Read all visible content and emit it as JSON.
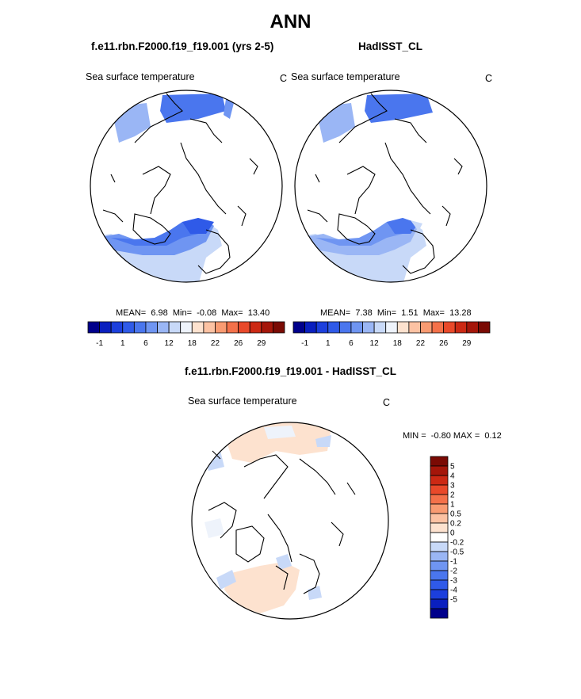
{
  "title": "ANN",
  "panels": [
    {
      "header": "f.e11.rbn.F2000.f19_f19.001 (yrs 2-5)",
      "variable": "Sea surface temperature",
      "units": "C",
      "stats": {
        "mean_label": "MEAN=",
        "mean": "6.98",
        "min_label": "Min=",
        "min": "-0.08",
        "max_label": "Max=",
        "max": "13.40"
      }
    },
    {
      "header": "HadISST_CL",
      "variable": "Sea surface temperature",
      "units": "C",
      "stats": {
        "mean_label": "MEAN=",
        "mean": "7.38",
        "min_label": "Min=",
        "min": "1.51",
        "max_label": "Max=",
        "max": "13.28"
      }
    }
  ],
  "diff_panel": {
    "header": "f.e11.rbn.F2000.f19_f19.001 - HadISST_CL",
    "variable": "Sea surface temperature",
    "units": "C",
    "stats": {
      "min_label": "MIN =",
      "min": "-0.80",
      "max_label": "MAX =",
      "max": "0.12"
    }
  },
  "colorbar_abs": {
    "colors": [
      "#00008b",
      "#0a1fbf",
      "#1c3fdd",
      "#2f5ae8",
      "#4a76ee",
      "#6f95f2",
      "#9ab6f5",
      "#c8d9f8",
      "#eef3fb",
      "#fde2cf",
      "#fcc2a3",
      "#f99b72",
      "#f4714a",
      "#e9492a",
      "#cc2914",
      "#a5160a",
      "#7a0a04"
    ],
    "labels": [
      "-1",
      "1",
      "6",
      "12",
      "18",
      "22",
      "26",
      "29"
    ]
  },
  "colorbar_diff": {
    "colors": [
      "#7a0a04",
      "#a5160a",
      "#cc2914",
      "#e9492a",
      "#f4714a",
      "#f99b72",
      "#fcc2a3",
      "#fde2cf",
      "#ffffff",
      "#c8d9f8",
      "#9ab6f5",
      "#6f95f2",
      "#4a76ee",
      "#2f5ae8",
      "#1c3fdd",
      "#0a1fbf",
      "#00008b"
    ],
    "labels": [
      "5",
      "4",
      "3",
      "2",
      "1",
      "0.5",
      "0.2",
      "0",
      "-0.2",
      "-0.5",
      "-1",
      "-2",
      "-3",
      "-4",
      "-5"
    ]
  }
}
